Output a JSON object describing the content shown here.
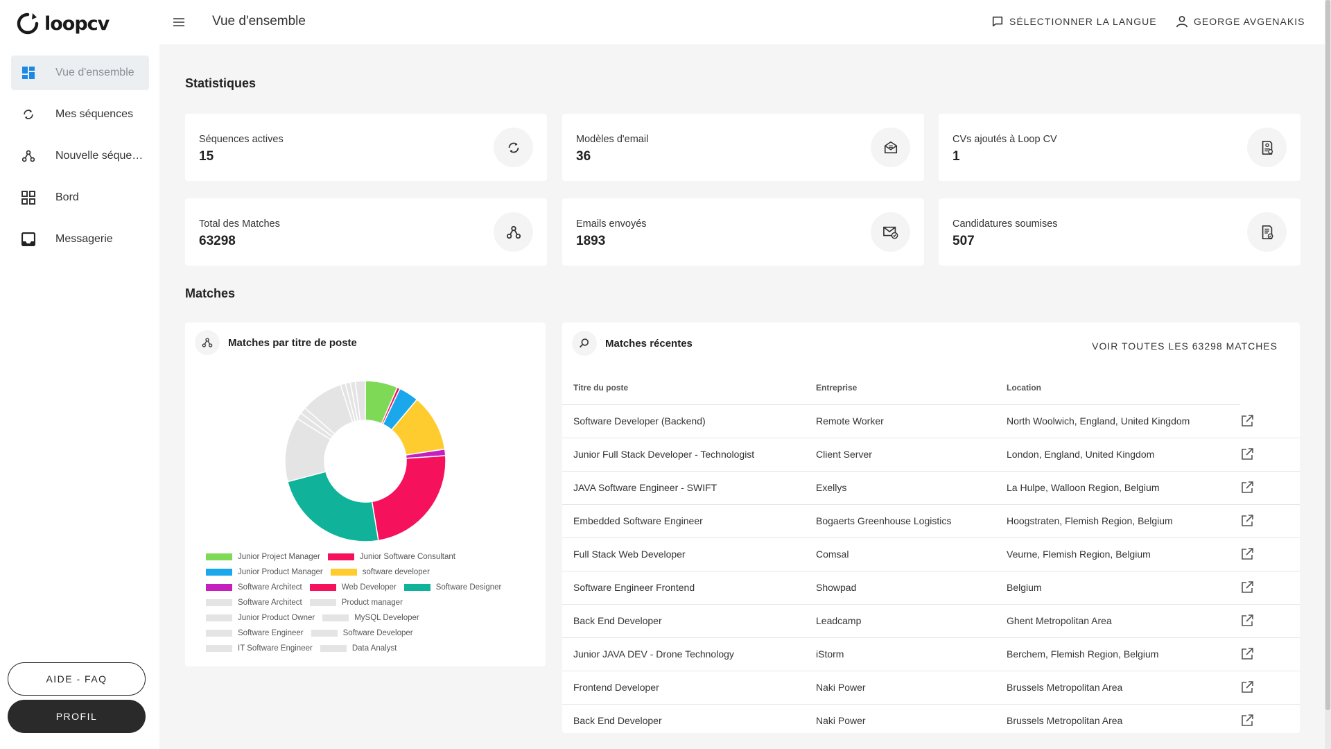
{
  "app": {
    "logo_text": "loopcv"
  },
  "sidebar": {
    "items": [
      {
        "label": "Vue d'ensemble",
        "icon": "dashboard-icon",
        "active": true
      },
      {
        "label": "Mes séquences",
        "icon": "sync-icon"
      },
      {
        "label": "Nouvelle séquence",
        "icon": "hub-icon"
      },
      {
        "label": "Bord",
        "icon": "grid-icon"
      },
      {
        "label": "Messagerie",
        "icon": "inbox-icon"
      }
    ],
    "faq_label": "AIDE - FAQ",
    "profile_label": "PROFIL"
  },
  "header": {
    "title": "Vue d'ensemble",
    "language_label": "SÉLECTIONNER LA LANGUE",
    "user_label": "GEORGE AVGENAKIS"
  },
  "stats": {
    "section_title": "Statistiques",
    "cards": [
      {
        "label": "Séquences actives",
        "value": "15",
        "icon": "sync-icon"
      },
      {
        "label": "Modèles d'email",
        "value": "36",
        "icon": "email-template-icon"
      },
      {
        "label": "CVs ajoutés à Loop CV",
        "value": "1",
        "icon": "cv-icon"
      },
      {
        "label": "Total des Matches",
        "value": "63298",
        "icon": "hub-icon"
      },
      {
        "label": "Emails envoyés",
        "value": "1893",
        "icon": "email-sent-icon"
      },
      {
        "label": "Candidatures soumises",
        "value": "507",
        "icon": "application-icon"
      }
    ]
  },
  "matches": {
    "section_title": "Matches",
    "chart_title": "Matches par titre de poste",
    "recent_title": "Matches récentes",
    "view_all_label": "VOIR TOUTES LES 63298 MATCHES",
    "columns": [
      "Titre du poste",
      "Entreprise",
      "Location"
    ],
    "rows": [
      [
        "Software Developer (Backend)",
        "Remote Worker",
        "North Woolwich, England, United Kingdom"
      ],
      [
        "Junior Full Stack Developer - Technologist",
        "Client Server",
        "London, England, United Kingdom"
      ],
      [
        "JAVA Software Engineer - SWIFT",
        "Exellys",
        "La Hulpe, Walloon Region, Belgium"
      ],
      [
        "Embedded Software Engineer",
        "Bogaerts Greenhouse Logistics",
        "Hoogstraten, Flemish Region, Belgium"
      ],
      [
        "Full Stack Web Developer",
        "Comsal",
        "Veurne, Flemish Region, Belgium"
      ],
      [
        "Software Engineer Frontend",
        "Showpad",
        "Belgium"
      ],
      [
        "Back End Developer",
        "Leadcamp",
        "Ghent Metropolitan Area"
      ],
      [
        "Junior JAVA DEV - Drone Technology",
        "iStorm",
        "Berchem, Flemish Region, Belgium"
      ],
      [
        "Frontend Developer",
        "Naki Power",
        "Brussels Metropolitan Area"
      ],
      [
        "Back End Developer",
        "Naki Power",
        "Brussels Metropolitan Area"
      ]
    ]
  },
  "chart_data": {
    "type": "pie",
    "donut": true,
    "title": "Matches par titre de poste",
    "legend_position": "bottom",
    "series": [
      {
        "name": "Junior Project Manager",
        "value": 6.5,
        "color": "#7ed957"
      },
      {
        "name": "Junior Software Consultant",
        "value": 0.6,
        "color": "#f5115b"
      },
      {
        "name": "Junior Product Manager",
        "value": 4.0,
        "color": "#1aa7ec"
      },
      {
        "name": "software developer",
        "value": 11.5,
        "color": "#ffcc2f"
      },
      {
        "name": "Software Architect",
        "value": 1.3,
        "color": "#c51fc0"
      },
      {
        "name": "Web Developer",
        "value": 23.5,
        "color": "#f5115b"
      },
      {
        "name": "Software Designer",
        "value": 23.5,
        "color": "#10b39a"
      },
      {
        "name": "Software Architect",
        "value": 13.0,
        "color": "#e4e4e4"
      },
      {
        "name": "Product manager",
        "value": 1.3,
        "color": "#e4e4e4"
      },
      {
        "name": "Junior Product Owner",
        "value": 1.3,
        "color": "#e4e4e4"
      },
      {
        "name": "MySQL Developer",
        "value": 8.5,
        "color": "#e4e4e4"
      },
      {
        "name": "Software Engineer",
        "value": 1.0,
        "color": "#e4e4e4"
      },
      {
        "name": "Software Developer",
        "value": 1.0,
        "color": "#e4e4e4"
      },
      {
        "name": "IT Software Engineer",
        "value": 1.0,
        "color": "#e4e4e4"
      },
      {
        "name": "Data Analyst",
        "value": 2.0,
        "color": "#e4e4e4"
      }
    ]
  }
}
